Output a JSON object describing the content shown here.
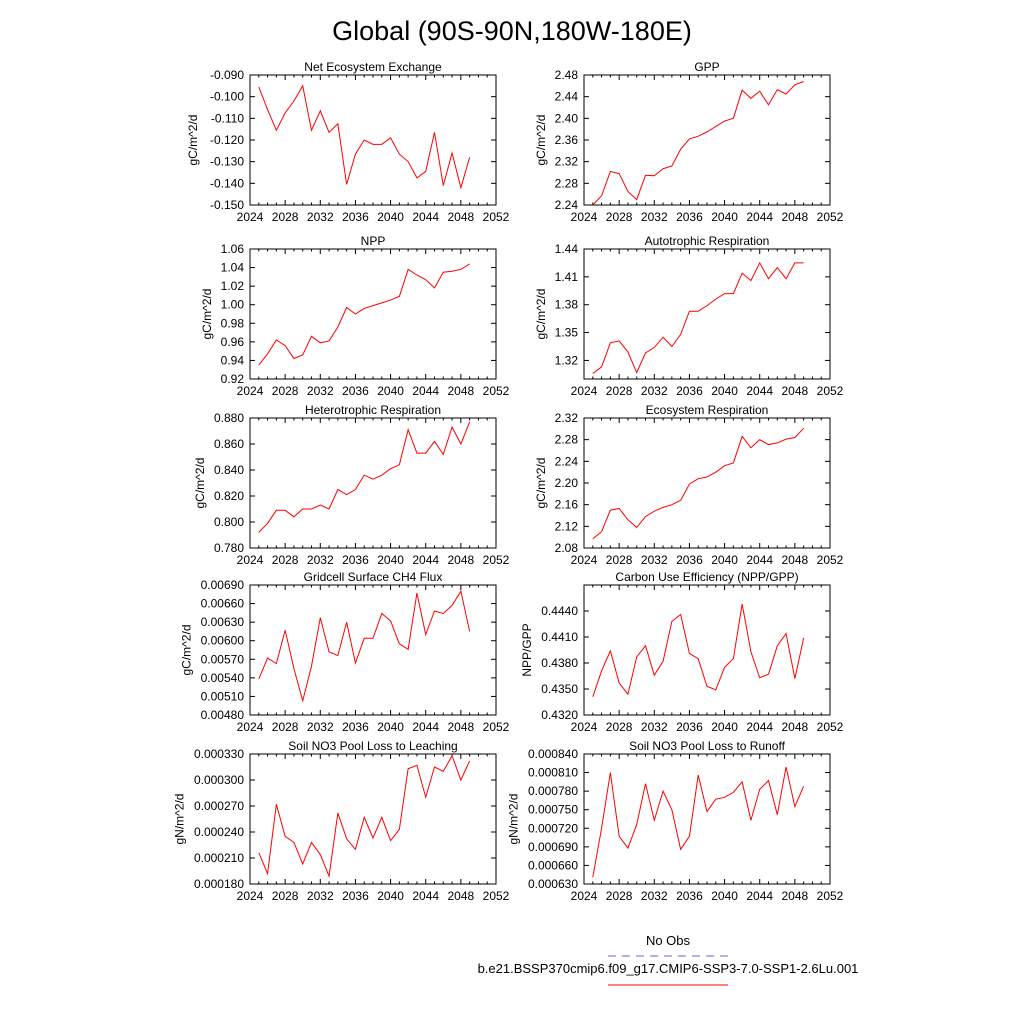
{
  "page": {
    "title": "Global (90S-90N,180W-180E)"
  },
  "legend": {
    "items": [
      {
        "label": "No Obs",
        "color": "#6666dd",
        "dash": "8,6"
      },
      {
        "label": "b.e21.BSSP370cmip6.f09_g17.CMIP6-SSP3-7.0-SSP1-2.6Lu.001",
        "color": "#ff0000",
        "dash": "none"
      }
    ]
  },
  "colors": {
    "series": "#ff0000",
    "axis": "#000000"
  },
  "chart_data": [
    {
      "type": "line",
      "title": "Net Ecosystem Exchange",
      "xlabel": "",
      "ylabel": "gC/m^2/d",
      "xlim": [
        2024,
        2052
      ],
      "ylim": [
        -0.15,
        -0.09
      ],
      "xticks": [
        2024,
        2028,
        2032,
        2036,
        2040,
        2044,
        2048,
        2052
      ],
      "xtick_labels": [
        "2024",
        "2028",
        "2032",
        "2036",
        "2040",
        "2044",
        "2048",
        "2052"
      ],
      "yticks": [
        -0.15,
        -0.14,
        -0.13,
        -0.12,
        -0.11,
        -0.1,
        -0.09
      ],
      "ytick_labels": [
        "-0.150",
        "-0.140",
        "-0.130",
        "-0.120",
        "-0.110",
        "-0.100",
        "-0.090"
      ],
      "x": [
        2025,
        2026,
        2027,
        2028,
        2029,
        2030,
        2031,
        2032,
        2033,
        2034,
        2035,
        2036,
        2037,
        2038,
        2039,
        2040,
        2041,
        2042,
        2043,
        2044,
        2045,
        2046,
        2047,
        2048,
        2049
      ],
      "y": [
        -0.0955,
        -0.106,
        -0.1155,
        -0.1075,
        -0.102,
        -0.095,
        -0.1155,
        -0.1065,
        -0.1165,
        -0.1125,
        -0.1405,
        -0.1265,
        -0.12,
        -0.122,
        -0.122,
        -0.119,
        -0.1265,
        -0.13,
        -0.1375,
        -0.1345,
        -0.1165,
        -0.141,
        -0.126,
        -0.142,
        -0.128
      ]
    },
    {
      "type": "line",
      "title": "GPP",
      "xlabel": "",
      "ylabel": "gC/m^2/d",
      "xlim": [
        2024,
        2052
      ],
      "ylim": [
        2.24,
        2.48
      ],
      "xticks": [
        2024,
        2028,
        2032,
        2036,
        2040,
        2044,
        2048,
        2052
      ],
      "xtick_labels": [
        "2024",
        "2028",
        "2032",
        "2036",
        "2040",
        "2044",
        "2048",
        "2052"
      ],
      "yticks": [
        2.24,
        2.28,
        2.32,
        2.36,
        2.4,
        2.44,
        2.48
      ],
      "ytick_labels": [
        "2.24",
        "2.28",
        "2.32",
        "2.36",
        "2.40",
        "2.44",
        "2.48"
      ],
      "x": [
        2025,
        2026,
        2027,
        2028,
        2029,
        2030,
        2031,
        2032,
        2033,
        2034,
        2035,
        2036,
        2037,
        2038,
        2039,
        2040,
        2041,
        2042,
        2043,
        2044,
        2045,
        2046,
        2047,
        2048,
        2049
      ],
      "y": [
        2.24,
        2.257,
        2.302,
        2.298,
        2.265,
        2.25,
        2.295,
        2.294,
        2.307,
        2.312,
        2.343,
        2.362,
        2.367,
        2.375,
        2.385,
        2.395,
        2.4,
        2.452,
        2.437,
        2.45,
        2.425,
        2.453,
        2.445,
        2.462,
        2.468
      ]
    },
    {
      "type": "line",
      "title": "NPP",
      "xlabel": "",
      "ylabel": "gC/m^2/d",
      "xlim": [
        2024,
        2052
      ],
      "ylim": [
        0.92,
        1.06
      ],
      "xticks": [
        2024,
        2028,
        2032,
        2036,
        2040,
        2044,
        2048,
        2052
      ],
      "xtick_labels": [
        "2024",
        "2028",
        "2032",
        "2036",
        "2040",
        "2044",
        "2048",
        "2052"
      ],
      "yticks": [
        0.92,
        0.94,
        0.96,
        0.98,
        1.0,
        1.02,
        1.04,
        1.06
      ],
      "ytick_labels": [
        "0.92",
        "0.94",
        "0.96",
        "0.98",
        "1.00",
        "1.02",
        "1.04",
        "1.06"
      ],
      "x": [
        2025,
        2026,
        2027,
        2028,
        2029,
        2030,
        2031,
        2032,
        2033,
        2034,
        2035,
        2036,
        2037,
        2038,
        2039,
        2040,
        2041,
        2042,
        2043,
        2044,
        2045,
        2046,
        2047,
        2048,
        2049
      ],
      "y": [
        0.935,
        0.947,
        0.962,
        0.956,
        0.942,
        0.946,
        0.966,
        0.959,
        0.961,
        0.976,
        0.997,
        0.99,
        0.996,
        0.999,
        1.002,
        1.005,
        1.009,
        1.038,
        1.032,
        1.027,
        1.018,
        1.035,
        1.036,
        1.038,
        1.044
      ]
    },
    {
      "type": "line",
      "title": "Autotrophic Respiration",
      "xlabel": "",
      "ylabel": "gC/m^2/d",
      "xlim": [
        2024,
        2052
      ],
      "ylim": [
        1.3,
        1.44
      ],
      "xticks": [
        2024,
        2028,
        2032,
        2036,
        2040,
        2044,
        2048,
        2052
      ],
      "xtick_labels": [
        "2024",
        "2028",
        "2032",
        "2036",
        "2040",
        "2044",
        "2048",
        "2052"
      ],
      "yticks": [
        1.32,
        1.35,
        1.38,
        1.41,
        1.44
      ],
      "ytick_labels": [
        "1.32",
        "1.35",
        "1.38",
        "1.41",
        "1.44"
      ],
      "x": [
        2025,
        2026,
        2027,
        2028,
        2029,
        2030,
        2031,
        2032,
        2033,
        2034,
        2035,
        2036,
        2037,
        2038,
        2039,
        2040,
        2041,
        2042,
        2043,
        2044,
        2045,
        2046,
        2047,
        2048,
        2049
      ],
      "y": [
        1.306,
        1.313,
        1.339,
        1.341,
        1.329,
        1.307,
        1.328,
        1.334,
        1.345,
        1.335,
        1.348,
        1.373,
        1.373,
        1.379,
        1.386,
        1.392,
        1.392,
        1.414,
        1.406,
        1.425,
        1.408,
        1.42,
        1.408,
        1.425,
        1.425
      ]
    },
    {
      "type": "line",
      "title": "Heterotrophic Respiration",
      "xlabel": "",
      "ylabel": "gC/m^2/d",
      "xlim": [
        2024,
        2052
      ],
      "ylim": [
        0.78,
        0.88
      ],
      "xticks": [
        2024,
        2028,
        2032,
        2036,
        2040,
        2044,
        2048,
        2052
      ],
      "xtick_labels": [
        "2024",
        "2028",
        "2032",
        "2036",
        "2040",
        "2044",
        "2048",
        "2052"
      ],
      "yticks": [
        0.78,
        0.8,
        0.82,
        0.84,
        0.86,
        0.88
      ],
      "ytick_labels": [
        "0.780",
        "0.800",
        "0.820",
        "0.840",
        "0.860",
        "0.880"
      ],
      "x": [
        2025,
        2026,
        2027,
        2028,
        2029,
        2030,
        2031,
        2032,
        2033,
        2034,
        2035,
        2036,
        2037,
        2038,
        2039,
        2040,
        2041,
        2042,
        2043,
        2044,
        2045,
        2046,
        2047,
        2048,
        2049
      ],
      "y": [
        0.792,
        0.799,
        0.809,
        0.809,
        0.804,
        0.81,
        0.81,
        0.813,
        0.81,
        0.825,
        0.821,
        0.825,
        0.836,
        0.833,
        0.836,
        0.841,
        0.844,
        0.871,
        0.853,
        0.853,
        0.862,
        0.852,
        0.873,
        0.86,
        0.877
      ]
    },
    {
      "type": "line",
      "title": "Ecosystem Respiration",
      "xlabel": "",
      "ylabel": "gC/m^2/d",
      "xlim": [
        2024,
        2052
      ],
      "ylim": [
        2.08,
        2.32
      ],
      "xticks": [
        2024,
        2028,
        2032,
        2036,
        2040,
        2044,
        2048,
        2052
      ],
      "xtick_labels": [
        "2024",
        "2028",
        "2032",
        "2036",
        "2040",
        "2044",
        "2048",
        "2052"
      ],
      "yticks": [
        2.08,
        2.12,
        2.16,
        2.2,
        2.24,
        2.28,
        2.32
      ],
      "ytick_labels": [
        "2.08",
        "2.12",
        "2.16",
        "2.20",
        "2.24",
        "2.28",
        "2.32"
      ],
      "x": [
        2025,
        2026,
        2027,
        2028,
        2029,
        2030,
        2031,
        2032,
        2033,
        2034,
        2035,
        2036,
        2037,
        2038,
        2039,
        2040,
        2041,
        2042,
        2043,
        2044,
        2045,
        2046,
        2047,
        2048,
        2049
      ],
      "y": [
        2.097,
        2.11,
        2.15,
        2.153,
        2.132,
        2.118,
        2.138,
        2.148,
        2.155,
        2.16,
        2.168,
        2.198,
        2.208,
        2.211,
        2.22,
        2.232,
        2.237,
        2.286,
        2.265,
        2.28,
        2.271,
        2.274,
        2.281,
        2.284,
        2.301
      ]
    },
    {
      "type": "line",
      "title": "Gridcell Surface CH4 Flux",
      "xlabel": "",
      "ylabel": "gC/m^2/d",
      "xlim": [
        2024,
        2052
      ],
      "ylim": [
        0.0048,
        0.0069
      ],
      "xticks": [
        2024,
        2028,
        2032,
        2036,
        2040,
        2044,
        2048,
        2052
      ],
      "xtick_labels": [
        "2024",
        "2028",
        "2032",
        "2036",
        "2040",
        "2044",
        "2048",
        "2052"
      ],
      "yticks": [
        0.0048,
        0.0051,
        0.0054,
        0.0057,
        0.006,
        0.0063,
        0.0066,
        0.0069
      ],
      "ytick_labels": [
        "0.00480",
        "0.00510",
        "0.00540",
        "0.00570",
        "0.00600",
        "0.00630",
        "0.00660",
        "0.00690"
      ],
      "x": [
        2025,
        2026,
        2027,
        2028,
        2029,
        2030,
        2031,
        2032,
        2033,
        2034,
        2035,
        2036,
        2037,
        2038,
        2039,
        2040,
        2041,
        2042,
        2043,
        2044,
        2045,
        2046,
        2047,
        2048,
        2049
      ],
      "y": [
        0.00538,
        0.00572,
        0.00563,
        0.00617,
        0.00555,
        0.00503,
        0.00559,
        0.00637,
        0.00582,
        0.00576,
        0.0063,
        0.00564,
        0.00604,
        0.00604,
        0.00644,
        0.00632,
        0.00595,
        0.00586,
        0.00677,
        0.0061,
        0.00648,
        0.00644,
        0.00657,
        0.0068,
        0.00615
      ]
    },
    {
      "type": "line",
      "title": "Carbon Use Efficiency (NPP/GPP)",
      "xlabel": "",
      "ylabel": "NPP/GPP",
      "xlim": [
        2024,
        2052
      ],
      "ylim": [
        0.432,
        0.447
      ],
      "xticks": [
        2024,
        2028,
        2032,
        2036,
        2040,
        2044,
        2048,
        2052
      ],
      "xtick_labels": [
        "2024",
        "2028",
        "2032",
        "2036",
        "2040",
        "2044",
        "2048",
        "2052"
      ],
      "yticks": [
        0.432,
        0.435,
        0.438,
        0.441,
        0.444
      ],
      "ytick_labels": [
        "0.4320",
        "0.4350",
        "0.4380",
        "0.4410",
        "0.4440"
      ],
      "x": [
        2025,
        2026,
        2027,
        2028,
        2029,
        2030,
        2031,
        2032,
        2033,
        2034,
        2035,
        2036,
        2037,
        2038,
        2039,
        2040,
        2041,
        2042,
        2043,
        2044,
        2045,
        2046,
        2047,
        2048,
        2049
      ],
      "y": [
        0.4341,
        0.4371,
        0.4394,
        0.4357,
        0.4344,
        0.4387,
        0.44,
        0.4366,
        0.4382,
        0.4428,
        0.4436,
        0.4391,
        0.4385,
        0.4353,
        0.4349,
        0.4375,
        0.4385,
        0.4448,
        0.4393,
        0.4363,
        0.4367,
        0.44,
        0.4414,
        0.4362,
        0.4409
      ]
    },
    {
      "type": "line",
      "title": "Soil NO3 Pool Loss to Leaching",
      "xlabel": "",
      "ylabel": "gN/m^2/d",
      "xlim": [
        2024,
        2052
      ],
      "ylim": [
        0.00018,
        0.00033
      ],
      "xticks": [
        2024,
        2028,
        2032,
        2036,
        2040,
        2044,
        2048,
        2052
      ],
      "xtick_labels": [
        "2024",
        "2028",
        "2032",
        "2036",
        "2040",
        "2044",
        "2048",
        "2052"
      ],
      "yticks": [
        0.00018,
        0.00021,
        0.00024,
        0.00027,
        0.0003,
        0.00033
      ],
      "ytick_labels": [
        "0.000180",
        "0.000210",
        "0.000240",
        "0.000270",
        "0.000300",
        "0.000330"
      ],
      "x": [
        2025,
        2026,
        2027,
        2028,
        2029,
        2030,
        2031,
        2032,
        2033,
        2034,
        2035,
        2036,
        2037,
        2038,
        2039,
        2040,
        2041,
        2042,
        2043,
        2044,
        2045,
        2046,
        2047,
        2048,
        2049
      ],
      "y": [
        0.000216,
        0.000192,
        0.000272,
        0.000235,
        0.000228,
        0.000203,
        0.000228,
        0.000214,
        0.000189,
        0.000262,
        0.000232,
        0.00022,
        0.000257,
        0.000233,
        0.000257,
        0.00023,
        0.000243,
        0.000313,
        0.000317,
        0.00028,
        0.000315,
        0.00031,
        0.000328,
        0.0003,
        0.000322
      ]
    },
    {
      "type": "line",
      "title": "Soil NO3 Pool Loss to Runoff",
      "xlabel": "",
      "ylabel": "gN/m^2/d",
      "xlim": [
        2024,
        2052
      ],
      "ylim": [
        0.00063,
        0.00084
      ],
      "xticks": [
        2024,
        2028,
        2032,
        2036,
        2040,
        2044,
        2048,
        2052
      ],
      "xtick_labels": [
        "2024",
        "2028",
        "2032",
        "2036",
        "2040",
        "2044",
        "2048",
        "2052"
      ],
      "yticks": [
        0.00063,
        0.00066,
        0.00069,
        0.00072,
        0.00075,
        0.00078,
        0.00081,
        0.00084
      ],
      "ytick_labels": [
        "0.000630",
        "0.000660",
        "0.000690",
        "0.000720",
        "0.000750",
        "0.000780",
        "0.000810",
        "0.000840"
      ],
      "x": [
        2025,
        2026,
        2027,
        2028,
        2029,
        2030,
        2031,
        2032,
        2033,
        2034,
        2035,
        2036,
        2037,
        2038,
        2039,
        2040,
        2041,
        2042,
        2043,
        2044,
        2045,
        2046,
        2047,
        2048,
        2049
      ],
      "y": [
        0.000641,
        0.00072,
        0.00081,
        0.000707,
        0.000688,
        0.000726,
        0.000792,
        0.000733,
        0.00078,
        0.00075,
        0.000686,
        0.000707,
        0.000806,
        0.000747,
        0.000767,
        0.00077,
        0.000778,
        0.000795,
        0.000733,
        0.000783,
        0.000797,
        0.000742,
        0.000819,
        0.000755,
        0.000788
      ]
    }
  ]
}
